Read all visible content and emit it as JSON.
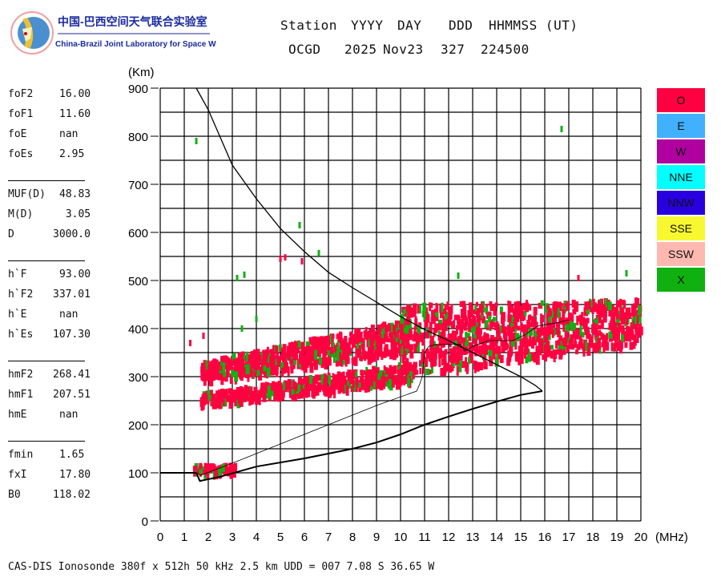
{
  "logo": {
    "title_cn": "中国-巴西空间天气联合实验室",
    "title_en": "China-Brazil Joint Laboratory for Space Weather"
  },
  "header": {
    "labels": [
      "Station",
      "YYYY",
      "DAY",
      "DDD",
      "HHMMSS (UT)"
    ],
    "values": [
      "OCGD",
      "2025",
      "Nov23",
      "327",
      "224500"
    ]
  },
  "params": [
    [
      {
        "label": "foF2",
        "value": "16.00"
      },
      {
        "label": "foF1",
        "value": "11.60"
      },
      {
        "label": "foE",
        "value": "nan"
      },
      {
        "label": "foEs",
        "value": "2.95"
      }
    ],
    [
      {
        "label": "MUF(D)",
        "value": "48.83"
      },
      {
        "label": "M(D)",
        "value": " 3.05"
      },
      {
        "label": "D",
        "value": "3000.0"
      }
    ],
    [
      {
        "label": "h`F",
        "value": "93.00"
      },
      {
        "label": "h`F2",
        "value": "337.01"
      },
      {
        "label": "h`E",
        "value": "nan"
      },
      {
        "label": "h`Es",
        "value": "107.30"
      }
    ],
    [
      {
        "label": "hmF2",
        "value": "268.41"
      },
      {
        "label": "hmF1",
        "value": "207.51"
      },
      {
        "label": "hmE",
        "value": "nan"
      }
    ],
    [
      {
        "label": "fmin",
        "value": "1.65"
      },
      {
        "label": "fxI",
        "value": "17.80"
      },
      {
        "label": "B0",
        "value": "118.02"
      }
    ]
  ],
  "legend": [
    {
      "label": "O",
      "color": "#ff0040"
    },
    {
      "label": "E",
      "color": "#40b0ff"
    },
    {
      "label": "W",
      "color": "#b000a0"
    },
    {
      "label": "NNE",
      "color": "#00ffff"
    },
    {
      "label": "NNW",
      "color": "#2800e0"
    },
    {
      "label": "SSE",
      "color": "#f8f830"
    },
    {
      "label": "SSW",
      "color": "#ffb8b0"
    },
    {
      "label": "X",
      "color": "#10b010"
    }
  ],
  "footer": "CAS-DIS Ionosonde 380f x 512h 50 kHz 2.5 km UDD = 007 7.08 S 36.65 W",
  "chart_data": {
    "type": "scatter",
    "title": "",
    "xlabel": "(MHz)",
    "ylabel": "(Km)",
    "xlim": [
      0,
      20
    ],
    "ylim": [
      0,
      900
    ],
    "xticks": [
      0,
      1,
      2,
      3,
      4,
      5,
      6,
      7,
      8,
      9,
      10,
      11,
      12,
      13,
      14,
      15,
      16,
      17,
      18,
      19,
      20
    ],
    "yticks": [
      0,
      100,
      200,
      300,
      400,
      500,
      600,
      700,
      800,
      900
    ],
    "grid": true,
    "legend_placement": "right",
    "echo_clusters": [
      {
        "name": "F-lower",
        "f": [
          1.7,
          10.5
        ],
        "h_low": [
          240,
          290
        ],
        "h_high": [
          265,
          330
        ],
        "count": 500,
        "x_fraction": 0.15
      },
      {
        "name": "F-upper",
        "f": [
          1.7,
          10.3
        ],
        "h_low": [
          290,
          350
        ],
        "h_high": [
          330,
          420
        ],
        "count": 650,
        "x_fraction": 0.12
      },
      {
        "name": "F-high-freq",
        "f": [
          10.0,
          20.0
        ],
        "h_low": [
          300,
          370
        ],
        "h_high": [
          450,
          460
        ],
        "count": 950,
        "x_fraction": 0.15
      },
      {
        "name": "Es",
        "f": [
          1.4,
          3.2
        ],
        "h_low": [
          100,
          100
        ],
        "h_high": [
          116,
          116
        ],
        "count": 70,
        "x_fraction": 0.3
      }
    ],
    "isolated_echoes": [
      {
        "f": 1.5,
        "h": 790,
        "mode": "X"
      },
      {
        "f": 16.7,
        "h": 815,
        "mode": "X"
      },
      {
        "f": 5.8,
        "h": 615,
        "mode": "X"
      },
      {
        "f": 3.2,
        "h": 505,
        "mode": "X"
      },
      {
        "f": 3.5,
        "h": 512,
        "mode": "X"
      },
      {
        "f": 5.0,
        "h": 545,
        "mode": "O"
      },
      {
        "f": 5.2,
        "h": 548,
        "mode": "O"
      },
      {
        "f": 6.6,
        "h": 557,
        "mode": "X"
      },
      {
        "f": 5.9,
        "h": 540,
        "mode": "O"
      },
      {
        "f": 4.0,
        "h": 420,
        "mode": "X"
      },
      {
        "f": 1.25,
        "h": 370,
        "mode": "O"
      },
      {
        "f": 1.8,
        "h": 385,
        "mode": "O"
      },
      {
        "f": 3.4,
        "h": 400,
        "mode": "X"
      },
      {
        "f": 12.4,
        "h": 510,
        "mode": "X"
      },
      {
        "f": 17.4,
        "h": 505,
        "mode": "O"
      },
      {
        "f": 19.4,
        "h": 515,
        "mode": "X"
      }
    ],
    "curves": [
      {
        "name": "ray-trace-upper",
        "width": 1.3,
        "points": [
          [
            1.5,
            900
          ],
          [
            2,
            855
          ],
          [
            3,
            740
          ],
          [
            4,
            670
          ],
          [
            5,
            608
          ],
          [
            6,
            560
          ],
          [
            7,
            517
          ],
          [
            8,
            485
          ],
          [
            9,
            455
          ],
          [
            10,
            425
          ],
          [
            11,
            398
          ],
          [
            12,
            375
          ],
          [
            13,
            350
          ],
          [
            14,
            325
          ],
          [
            15,
            300
          ],
          [
            15.6,
            282
          ],
          [
            15.9,
            270
          ]
        ]
      },
      {
        "name": "ray-trace-lower",
        "width": 2,
        "points": [
          [
            0,
            100
          ],
          [
            1.5,
            100
          ],
          [
            1.65,
            83
          ],
          [
            2.5,
            92
          ],
          [
            4,
            113
          ],
          [
            6,
            130
          ],
          [
            8,
            150
          ],
          [
            9,
            163
          ],
          [
            10,
            180
          ],
          [
            11,
            200
          ],
          [
            12,
            217
          ],
          [
            13,
            233
          ],
          [
            14,
            248
          ],
          [
            15,
            262
          ],
          [
            15.9,
            270
          ]
        ]
      },
      {
        "name": "thin-trace",
        "width": 0.8,
        "points": [
          [
            1.5,
            100
          ],
          [
            1.7,
            95
          ],
          [
            3,
            120
          ],
          [
            5,
            160
          ],
          [
            7,
            200
          ],
          [
            9,
            240
          ],
          [
            10.67,
            270
          ],
          [
            10.8,
            285
          ],
          [
            10.9,
            300
          ],
          [
            11.0,
            350
          ],
          [
            11.17,
            363
          ],
          [
            11.5,
            367
          ],
          [
            12.5,
            367
          ],
          [
            12.67,
            353
          ],
          [
            13,
            363
          ],
          [
            13.67,
            375
          ],
          [
            14.67,
            375
          ],
          [
            15.17,
            387
          ],
          [
            15.7,
            405
          ],
          [
            16,
            408
          ],
          [
            16.5,
            412
          ],
          [
            17,
            418
          ]
        ]
      }
    ]
  }
}
